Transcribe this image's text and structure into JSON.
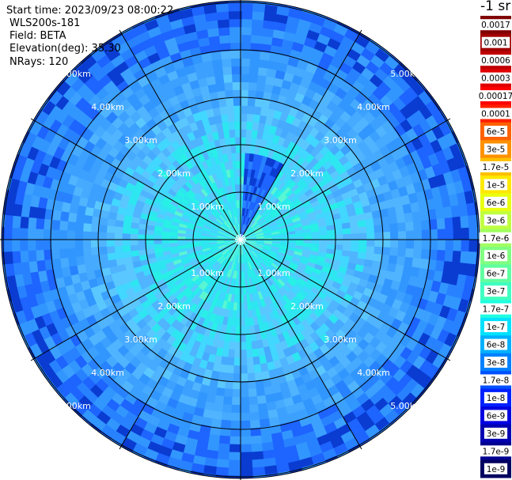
{
  "header": {
    "start_time": "Start time: 2023/09/23 08:00:22",
    "instrument": "WLS200s-181",
    "field": "Field: BETA",
    "elevation": "Elevation(deg): 35.30",
    "nrays": "NRays: 120"
  },
  "colorbar": {
    "units_label": "-1 sr",
    "tick_labels": [
      "0.0017",
      "0.001",
      "0.0006",
      "0.0003",
      "0.00017",
      "0.0001",
      "6e-5",
      "3e-5",
      "1.7e-5",
      "1e-5",
      "6e-6",
      "3e-6",
      "1.7e-6",
      "1e-6",
      "6e-7",
      "3e-7",
      "1.7e-7",
      "1e-7",
      "6e-8",
      "3e-8",
      "1.7e-8",
      "1e-8",
      "6e-9",
      "3e-9",
      "1.7e-9",
      "1e-9"
    ],
    "colors": [
      "#800000",
      "#a00000",
      "#c00000",
      "#e00000",
      "#ff0000",
      "#ff2000",
      "#ff6000",
      "#ff9000",
      "#ffc000",
      "#ffe800",
      "#e8ff10",
      "#c0ff40",
      "#a0ff60",
      "#80ff80",
      "#60ffa0",
      "#40ffc0",
      "#20ffe0",
      "#00e0ff",
      "#00b0ff",
      "#0080ff",
      "#0050ff",
      "#0020ff",
      "#0000e0",
      "#0000b0",
      "#000090",
      "#000060"
    ]
  },
  "chart_data": {
    "type": "heatmap",
    "projection": "polar",
    "field": "BETA",
    "units": "-1 sr",
    "elevation_deg": 35.3,
    "nrays": 120,
    "range_max_km": 5.0,
    "range_ring_labels": [
      "1.00km",
      "2.00km",
      "3.00km",
      "4.00km",
      "5.00km"
    ],
    "spoke_angles_deg": [
      0,
      30,
      60,
      90,
      120,
      150,
      180,
      210,
      240,
      270,
      300,
      330
    ],
    "color_scale": "log",
    "color_range": [
      1e-09,
      0.0017
    ]
  }
}
